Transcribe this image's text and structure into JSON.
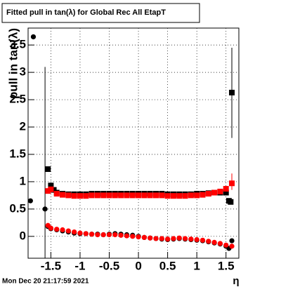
{
  "chart_data": {
    "type": "scatter",
    "title": "Fitted pull in tan(λ) for Global Rec All EtapT",
    "y_label": "pull in tan(λ)",
    "x_label": "η",
    "timestamp": "Mon Dec 20 21:17:59 2021",
    "xlim": [
      -1.89,
      1.72
    ],
    "ylim": [
      -0.4,
      3.81
    ],
    "xticks": [
      -1.5,
      -1,
      -0.5,
      0,
      0.5,
      1,
      1.5
    ],
    "yticks": [
      0,
      0.5,
      1,
      1.5,
      2,
      2.5,
      3,
      3.5
    ],
    "grid": true,
    "series": [
      {
        "color": "#000000",
        "marker": "square",
        "x": [
          -1.55,
          -1.5,
          -1.45,
          -1.4,
          -1.3,
          -1.2,
          -1.1,
          -1,
          -0.9,
          -0.8,
          -0.7,
          -0.6,
          -0.5,
          -0.4,
          -0.3,
          -0.2,
          -0.1,
          0,
          0.1,
          0.2,
          0.3,
          0.4,
          0.5,
          0.6,
          0.7,
          0.8,
          0.9,
          1,
          1.1,
          1.2,
          1.3,
          1.4,
          1.5,
          1.55,
          1.58,
          1.6
        ],
        "values": [
          1.23,
          0.93,
          0.85,
          0.8,
          0.78,
          0.77,
          0.77,
          0.77,
          0.77,
          0.78,
          0.78,
          0.78,
          0.78,
          0.78,
          0.78,
          0.78,
          0.78,
          0.78,
          0.78,
          0.78,
          0.78,
          0.78,
          0.77,
          0.77,
          0.77,
          0.77,
          0.77,
          0.78,
          0.78,
          0.79,
          0.8,
          0.8,
          0.8,
          0.65,
          0.63,
          2.63
        ]
      },
      {
        "color": "#000000",
        "marker": "circle",
        "x": [
          -1.85,
          -1.8,
          -1.6,
          -1.55,
          -1.5,
          -1.4,
          -1.3,
          -1.2,
          -1.1,
          -1,
          -0.9,
          -0.8,
          -0.7,
          -0.6,
          -0.5,
          -0.4,
          -0.3,
          -0.2,
          -0.1,
          0,
          0.1,
          0.2,
          0.3,
          0.4,
          0.5,
          0.6,
          0.7,
          0.8,
          0.9,
          1,
          1.1,
          1.2,
          1.3,
          1.4,
          1.5,
          1.55,
          1.6
        ],
        "values": [
          0.65,
          3.65,
          0.5,
          0.18,
          0.14,
          0.12,
          0.1,
          0.08,
          0.06,
          0.05,
          0.05,
          0.04,
          0.04,
          0.03,
          0.04,
          0.05,
          0.04,
          0.03,
          0.02,
          0,
          -0.02,
          -0.03,
          -0.04,
          -0.05,
          -0.06,
          -0.05,
          -0.04,
          -0.05,
          -0.06,
          -0.07,
          -0.08,
          -0.1,
          -0.12,
          -0.14,
          -0.18,
          -0.22,
          -0.08
        ]
      },
      {
        "color": "#ff0000",
        "marker": "square",
        "x": [
          -1.55,
          -1.5,
          -1.4,
          -1.3,
          -1.2,
          -1.1,
          -1,
          -0.9,
          -0.8,
          -0.7,
          -0.6,
          -0.5,
          -0.4,
          -0.3,
          -0.2,
          -0.1,
          0,
          0.1,
          0.2,
          0.3,
          0.4,
          0.5,
          0.6,
          0.7,
          0.8,
          0.9,
          1,
          1.1,
          1.2,
          1.3,
          1.4,
          1.5,
          1.6
        ],
        "values": [
          0.83,
          0.86,
          0.78,
          0.76,
          0.75,
          0.74,
          0.74,
          0.74,
          0.75,
          0.75,
          0.75,
          0.75,
          0.75,
          0.75,
          0.75,
          0.75,
          0.75,
          0.75,
          0.75,
          0.75,
          0.75,
          0.74,
          0.74,
          0.74,
          0.74,
          0.75,
          0.75,
          0.76,
          0.78,
          0.8,
          0.82,
          0.87,
          0.97
        ]
      },
      {
        "color": "#ff0000",
        "marker": "circle",
        "x": [
          -1.55,
          -1.5,
          -1.4,
          -1.3,
          -1.2,
          -1.1,
          -1,
          -0.9,
          -0.8,
          -0.7,
          -0.6,
          -0.5,
          -0.4,
          -0.3,
          -0.2,
          -0.1,
          0,
          0.1,
          0.2,
          0.3,
          0.4,
          0.5,
          0.6,
          0.7,
          0.8,
          0.9,
          1,
          1.1,
          1.2,
          1.3,
          1.4,
          1.5,
          1.6
        ],
        "values": [
          0.2,
          0.15,
          0.13,
          0.12,
          0.1,
          0.08,
          0.06,
          0.05,
          0.04,
          0.03,
          0.03,
          0.03,
          0.03,
          0.02,
          0.01,
          0,
          -0.01,
          -0.02,
          -0.03,
          -0.04,
          -0.04,
          -0.05,
          -0.04,
          -0.03,
          -0.04,
          -0.05,
          -0.06,
          -0.07,
          -0.09,
          -0.11,
          -0.13,
          -0.16,
          -0.18
        ]
      }
    ],
    "error_bars": [
      {
        "color": "#000000",
        "x": -1.6,
        "low": -0.4,
        "high": 3.1
      },
      {
        "color": "#000000",
        "x": 1.6,
        "low": 1.8,
        "high": 3.45
      },
      {
        "color": "#ff0000",
        "x": 1.6,
        "low": 0.85,
        "high": 1.15
      }
    ]
  }
}
